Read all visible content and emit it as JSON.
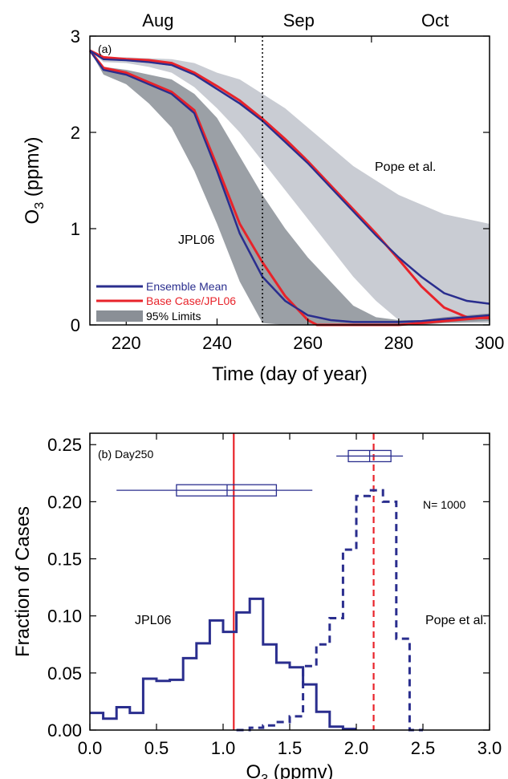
{
  "chart_data": [
    {
      "type": "line",
      "panel_label": "(a)",
      "xlabel": "Time (day of year)",
      "ylabel": "O3 (ppmv)",
      "ylabel_main": "O",
      "ylabel_sub": "3",
      "ylabel_rest": " (ppmv)",
      "xlim": [
        212,
        300
      ],
      "ylim": [
        0,
        3
      ],
      "xticks": [
        220,
        240,
        260,
        280,
        300
      ],
      "yticks": [
        0,
        1,
        2,
        3
      ],
      "months": [
        {
          "label": "Aug",
          "center": 227
        },
        {
          "label": "Sep",
          "center": 258
        },
        {
          "label": "Oct",
          "center": 288
        }
      ],
      "month_boundaries": [
        244,
        274
      ],
      "vline_day": 250,
      "annotations": [
        "JPL06",
        "Pope et al."
      ],
      "legend": {
        "placement": "bottom-left",
        "ensemble_mean": "Ensemble Mean",
        "base_case": "Base Case/JPL06",
        "limits": "95% Limits"
      },
      "colors": {
        "ensemble_mean": "#2a2e8e",
        "base_case": "#e8232a",
        "band_light": "#c9ccd3",
        "band_dark": "#8a8f96",
        "band_overlap": "#a7acb3"
      },
      "series": [
        {
          "name": "Ensemble Mean",
          "group": "Pope et al.",
          "x": [
            212,
            215,
            220,
            225,
            230,
            235,
            240,
            245,
            250,
            255,
            260,
            265,
            270,
            275,
            280,
            285,
            290,
            295,
            300
          ],
          "y": [
            2.85,
            2.76,
            2.75,
            2.73,
            2.7,
            2.6,
            2.45,
            2.3,
            2.12,
            1.9,
            1.68,
            1.43,
            1.18,
            0.93,
            0.7,
            0.5,
            0.33,
            0.25,
            0.22
          ]
        },
        {
          "name": "Base Case/JPL06",
          "group": "Pope et al.",
          "x": [
            212,
            215,
            220,
            225,
            230,
            235,
            240,
            245,
            250,
            255,
            260,
            265,
            270,
            275,
            280,
            285,
            290,
            295,
            300
          ],
          "y": [
            2.85,
            2.78,
            2.76,
            2.75,
            2.72,
            2.62,
            2.48,
            2.33,
            2.14,
            1.93,
            1.7,
            1.45,
            1.2,
            0.95,
            0.68,
            0.4,
            0.18,
            0.08,
            0.07
          ]
        },
        {
          "name": "Ensemble Mean",
          "group": "JPL06",
          "x": [
            212,
            215,
            220,
            225,
            230,
            235,
            240,
            245,
            250,
            255,
            260,
            265,
            270,
            275,
            280,
            285,
            290,
            295,
            300
          ],
          "y": [
            2.85,
            2.65,
            2.6,
            2.5,
            2.4,
            2.2,
            1.6,
            0.95,
            0.5,
            0.25,
            0.1,
            0.05,
            0.03,
            0.03,
            0.03,
            0.04,
            0.06,
            0.08,
            0.1
          ]
        },
        {
          "name": "Base Case/JPL06",
          "group": "JPL06",
          "x": [
            212,
            215,
            220,
            225,
            230,
            235,
            240,
            245,
            250,
            255,
            260,
            262,
            265,
            270,
            275,
            280,
            285,
            290,
            295,
            300
          ],
          "y": [
            2.85,
            2.67,
            2.62,
            2.52,
            2.42,
            2.23,
            1.65,
            1.05,
            0.65,
            0.3,
            0.05,
            0.0,
            0.0,
            0.0,
            0.0,
            0.0,
            0.02,
            0.04,
            0.06,
            0.08
          ]
        }
      ],
      "bands": [
        {
          "name": "Pope et al. 95% Limits",
          "x": [
            212,
            215,
            220,
            225,
            230,
            235,
            240,
            245,
            250,
            255,
            260,
            265,
            270,
            275,
            280,
            285,
            290,
            295,
            300
          ],
          "lower": [
            2.85,
            2.73,
            2.72,
            2.68,
            2.62,
            2.47,
            2.25,
            2.0,
            1.7,
            1.4,
            1.1,
            0.8,
            0.5,
            0.25,
            0.05,
            0.02,
            0.02,
            0.02,
            0.02
          ],
          "upper": [
            2.85,
            2.78,
            2.78,
            2.77,
            2.76,
            2.72,
            2.62,
            2.55,
            2.4,
            2.25,
            2.05,
            1.85,
            1.65,
            1.5,
            1.35,
            1.25,
            1.15,
            1.1,
            1.05
          ]
        },
        {
          "name": "JPL06 95% Limits",
          "x": [
            212,
            215,
            220,
            225,
            230,
            235,
            240,
            245,
            250,
            255,
            260,
            265,
            270,
            275,
            280,
            285,
            290,
            295,
            300
          ],
          "lower": [
            2.85,
            2.6,
            2.5,
            2.3,
            2.05,
            1.6,
            1.05,
            0.45,
            0.02,
            0.0,
            0.0,
            0.0,
            0.0,
            0.0,
            0.0,
            0.0,
            0.02,
            0.03,
            0.04
          ],
          "upper": [
            2.85,
            2.68,
            2.65,
            2.6,
            2.55,
            2.4,
            2.15,
            1.75,
            1.35,
            1.0,
            0.7,
            0.45,
            0.2,
            0.08,
            0.05,
            0.05,
            0.08,
            0.1,
            0.12
          ]
        }
      ]
    },
    {
      "type": "bar",
      "subtype": "histogram",
      "panel_label": "(b) Day250",
      "xlabel": "O3 (ppmv)",
      "xlabel_main": "O",
      "xlabel_sub": "3",
      "xlabel_rest": " (ppmv)",
      "ylabel": "Fraction of Cases",
      "xlim": [
        0.0,
        3.0
      ],
      "ylim": [
        0.0,
        0.26
      ],
      "xticks": [
        "0.0",
        "0.5",
        "1.0",
        "1.5",
        "2.0",
        "2.5",
        "3.0"
      ],
      "yticks": [
        "0.00",
        "0.05",
        "0.10",
        "0.15",
        "0.20",
        "0.25"
      ],
      "n_label": "N= 1000",
      "annotations": [
        "JPL06",
        "Pope et al."
      ],
      "bin_width": 0.1,
      "series": [
        {
          "name": "JPL06",
          "style": "solid",
          "color": "#2a2e8e",
          "bin_starts": [
            0.0,
            0.1,
            0.2,
            0.3,
            0.4,
            0.5,
            0.6,
            0.7,
            0.8,
            0.9,
            1.0,
            1.1,
            1.2,
            1.3,
            1.4,
            1.5,
            1.6,
            1.7,
            1.8,
            1.9
          ],
          "values": [
            0.015,
            0.01,
            0.02,
            0.015,
            0.045,
            0.043,
            0.044,
            0.063,
            0.076,
            0.096,
            0.086,
            0.103,
            0.115,
            0.075,
            0.059,
            0.055,
            0.04,
            0.016,
            0.003,
            0.001
          ]
        },
        {
          "name": "Pope et al.",
          "style": "dashed",
          "color": "#2a2e8e",
          "bin_starts": [
            1.1,
            1.2,
            1.3,
            1.4,
            1.5,
            1.6,
            1.7,
            1.8,
            1.9,
            2.0,
            2.1,
            2.2,
            2.3,
            2.4
          ],
          "values": [
            0.0,
            0.002,
            0.004,
            0.007,
            0.012,
            0.056,
            0.075,
            0.098,
            0.158,
            0.205,
            0.21,
            0.2,
            0.08,
            0.0
          ]
        }
      ],
      "vlines": [
        {
          "x": 1.08,
          "style": "solid",
          "color": "#e8232a"
        },
        {
          "x": 2.13,
          "style": "dashed",
          "color": "#e8232a"
        }
      ],
      "boxplots": [
        {
          "group": "JPL06",
          "y": 0.21,
          "whisker_low": 0.2,
          "q1": 0.65,
          "median": 1.03,
          "q3": 1.4,
          "whisker_high": 1.67
        },
        {
          "group": "Pope et al.",
          "y": 0.24,
          "whisker_low": 1.85,
          "q1": 1.94,
          "median": 2.1,
          "q3": 2.26,
          "whisker_high": 2.35
        }
      ]
    }
  ]
}
